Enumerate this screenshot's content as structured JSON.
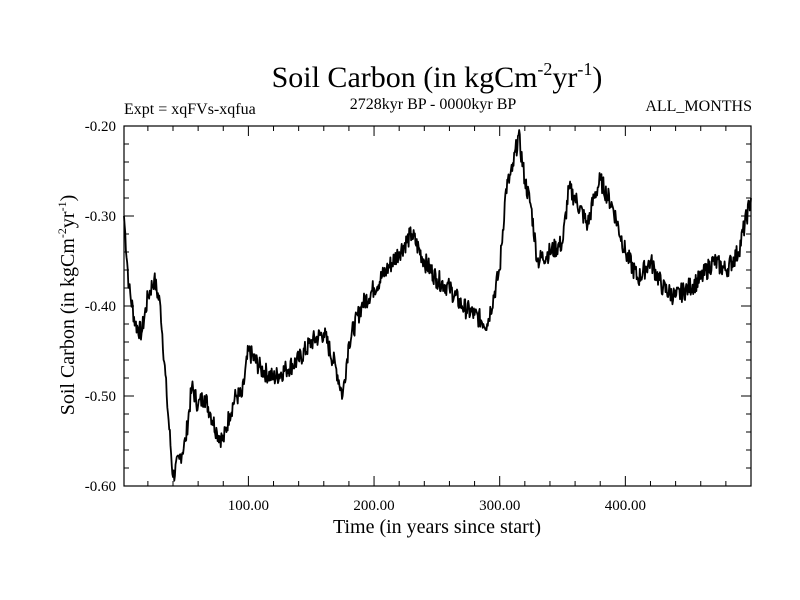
{
  "chart_data": {
    "type": "line",
    "title": "Soil Carbon (in kgCm",
    "title_sup1": "-2",
    "title_mid": "yr",
    "title_sup2": "-1",
    "title_end": ")",
    "subtitle_left": "Expt = xqFVs-xqfua",
    "subtitle_center": "2728kyr BP - 0000kyr BP",
    "subtitle_right": "ALL_MONTHS",
    "xlabel": "Time (in years since start)",
    "ylabel": "Soil Carbon (in kgCm",
    "ylabel_sup1": "-2",
    "ylabel_mid": "yr",
    "ylabel_sup2": "-1",
    "ylabel_end": ")",
    "xlim": [
      1,
      500
    ],
    "ylim": [
      -0.6,
      -0.2
    ],
    "xticks": [
      100,
      200,
      300,
      400
    ],
    "xtick_labels": [
      "100.00",
      "200.00",
      "300.00",
      "400.00"
    ],
    "yticks": [
      -0.2,
      -0.3,
      -0.4,
      -0.5,
      -0.6
    ],
    "ytick_labels": [
      "-0.20",
      "-0.30",
      "-0.40",
      "-0.50",
      "-0.60"
    ],
    "series": [
      {
        "name": "Soil Carbon",
        "color": "#000000",
        "x": [
          1,
          5,
          10,
          15,
          20,
          25,
          30,
          35,
          40,
          45,
          50,
          55,
          60,
          65,
          70,
          75,
          80,
          85,
          90,
          95,
          100,
          110,
          120,
          130,
          140,
          150,
          160,
          170,
          175,
          180,
          190,
          200,
          210,
          220,
          230,
          240,
          250,
          260,
          270,
          280,
          290,
          300,
          305,
          310,
          315,
          320,
          325,
          330,
          340,
          350,
          355,
          360,
          370,
          375,
          380,
          390,
          400,
          410,
          420,
          430,
          440,
          450,
          460,
          470,
          480,
          490,
          500
        ],
        "values": [
          -0.3,
          -0.38,
          -0.42,
          -0.43,
          -0.39,
          -0.37,
          -0.4,
          -0.5,
          -0.59,
          -0.57,
          -0.55,
          -0.49,
          -0.51,
          -0.5,
          -0.52,
          -0.54,
          -0.55,
          -0.52,
          -0.5,
          -0.5,
          -0.45,
          -0.47,
          -0.48,
          -0.47,
          -0.46,
          -0.44,
          -0.43,
          -0.47,
          -0.5,
          -0.44,
          -0.4,
          -0.38,
          -0.36,
          -0.34,
          -0.32,
          -0.35,
          -0.37,
          -0.38,
          -0.4,
          -0.41,
          -0.42,
          -0.36,
          -0.27,
          -0.25,
          -0.21,
          -0.26,
          -0.29,
          -0.35,
          -0.34,
          -0.33,
          -0.27,
          -0.28,
          -0.31,
          -0.28,
          -0.26,
          -0.29,
          -0.34,
          -0.37,
          -0.35,
          -0.38,
          -0.39,
          -0.38,
          -0.37,
          -0.35,
          -0.36,
          -0.34,
          -0.28
        ]
      }
    ]
  }
}
